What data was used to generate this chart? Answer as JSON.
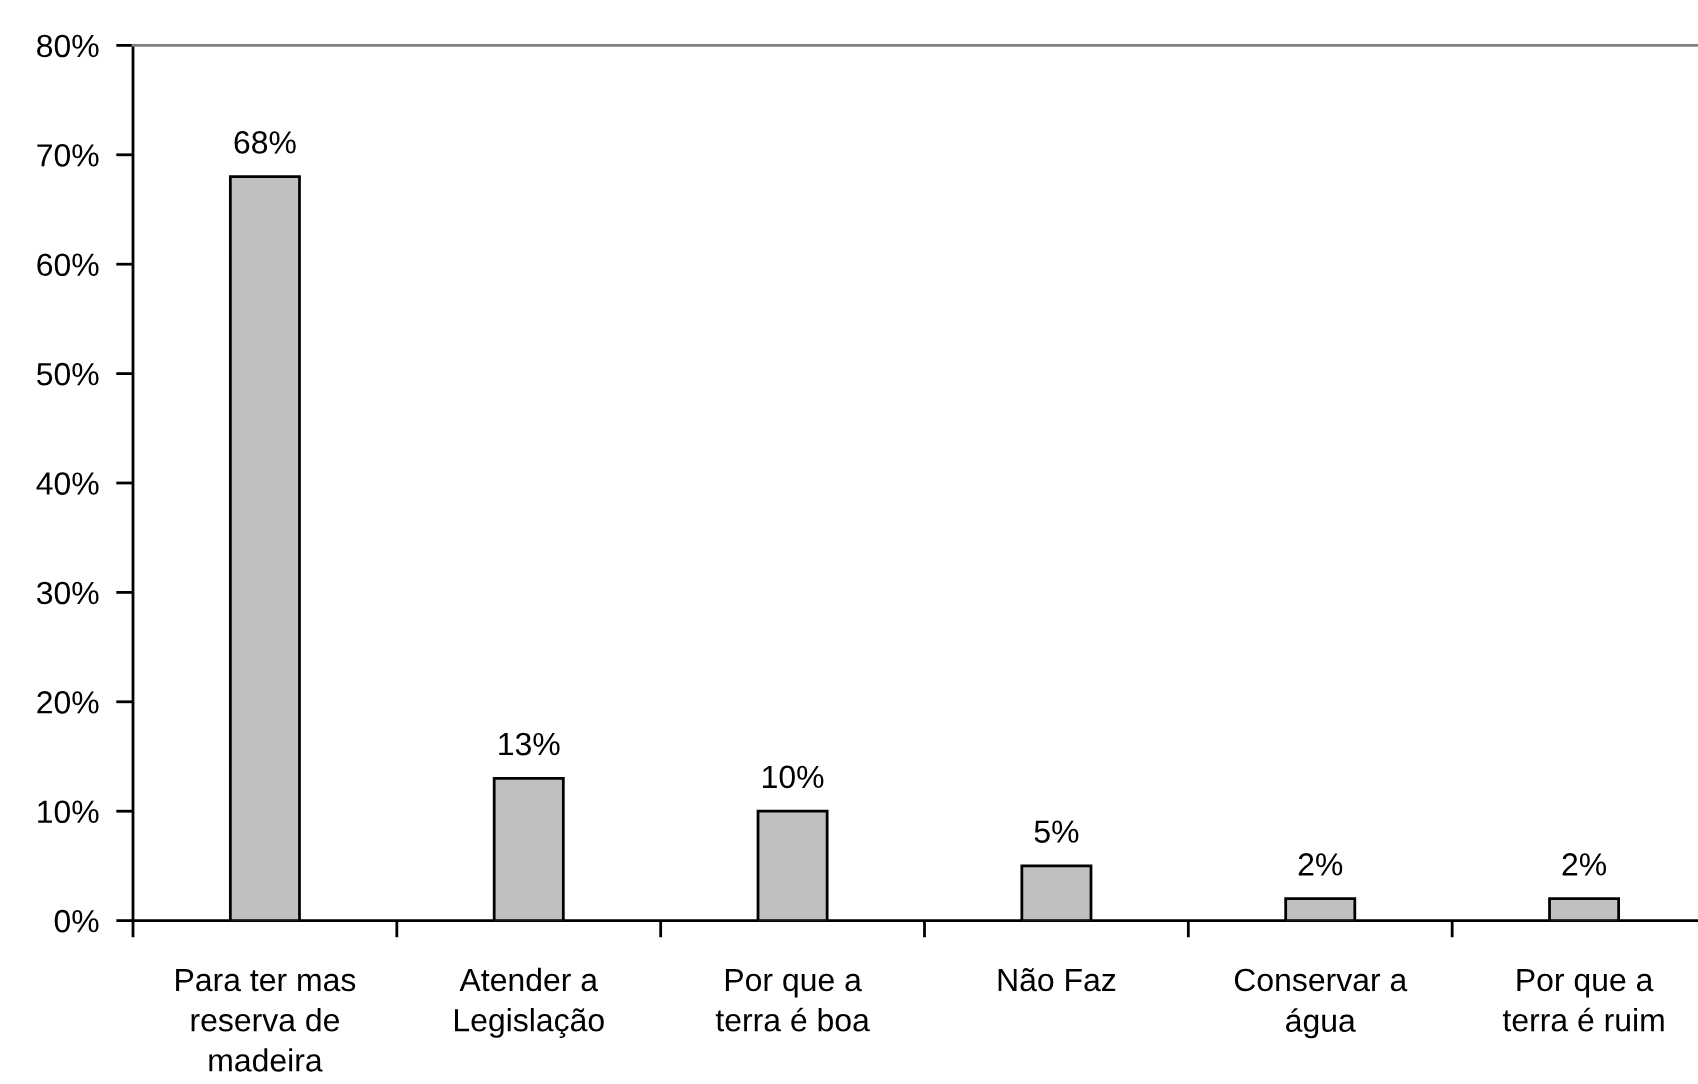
{
  "chart_data": {
    "type": "bar",
    "categories": [
      "Para ter mas\nreserva de\nmadeira",
      "Atender a\nLegislação",
      "Por que a\nterra é boa",
      "Não Faz",
      "Conservar a\nágua",
      "Por que a\nterra é ruim"
    ],
    "values": [
      68,
      13,
      10,
      5,
      2,
      2
    ],
    "value_labels": [
      "68%",
      "13%",
      "10%",
      "5%",
      "2%",
      "2%"
    ],
    "color": "#c0c0c0",
    "ylim": [
      0,
      80
    ],
    "yticks": [
      {
        "value": 0,
        "label": "0%"
      },
      {
        "value": 10,
        "label": "10%"
      },
      {
        "value": 20,
        "label": "20%"
      },
      {
        "value": 30,
        "label": "30%"
      },
      {
        "value": 40,
        "label": "40%"
      },
      {
        "value": 50,
        "label": "50%"
      },
      {
        "value": 60,
        "label": "60%"
      },
      {
        "value": 70,
        "label": "70%"
      },
      {
        "value": 80,
        "label": "80%"
      }
    ],
    "grid": false,
    "legend": false
  }
}
